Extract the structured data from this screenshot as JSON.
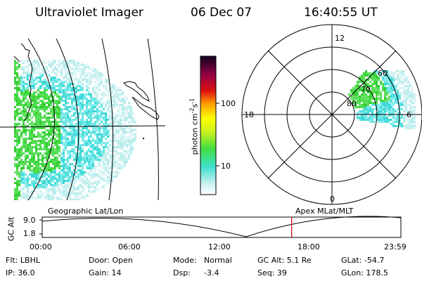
{
  "header": {
    "title": "Ultraviolet Imager",
    "date": "06 Dec 07",
    "time": "16:40:55 UT"
  },
  "colorbar": {
    "label": "photon cm^-2 s^-1",
    "label_text": "photon cm",
    "label_sup1": "-2",
    "label_mid": "s",
    "label_sup2": "-1",
    "ticks": [
      "100",
      "10"
    ]
  },
  "polar_plot": {
    "clock_labels": {
      "top": "12",
      "left": "18",
      "right": "6",
      "bottom": "0"
    },
    "lat_labels": [
      "60",
      "70",
      "80"
    ]
  },
  "timeline": {
    "left_label": "Geographic Lat/Lon",
    "right_label": "Apex MLat/MLT",
    "axis_title": "GC Alt",
    "y_ticks": [
      "9.0",
      "1.8"
    ],
    "x_ticks": [
      "00:00",
      "06:00",
      "12:00",
      "18:00",
      "23:59"
    ],
    "current_time_fraction": 0.6954,
    "marker_color": "#cc0000"
  },
  "info": {
    "row1": {
      "filter": "Flt: LBHL",
      "door": "Door: Open",
      "mode_label": "Mode:",
      "mode_value": "Normal",
      "gcalt": "GC Alt: 5.1 Re",
      "glat": "GLat: -54.7"
    },
    "row2": {
      "ip": "IP: 36.0",
      "gain": "Gain: 14",
      "dsp_label": "Dsp:",
      "dsp_value": "-3.4",
      "seq": "Seq: 39",
      "glon": "GLon: 178.5"
    }
  },
  "colors": {
    "aurora_green": "#44dd44",
    "aurora_cyan": "#55e0e0",
    "marker": "#cc0000"
  }
}
